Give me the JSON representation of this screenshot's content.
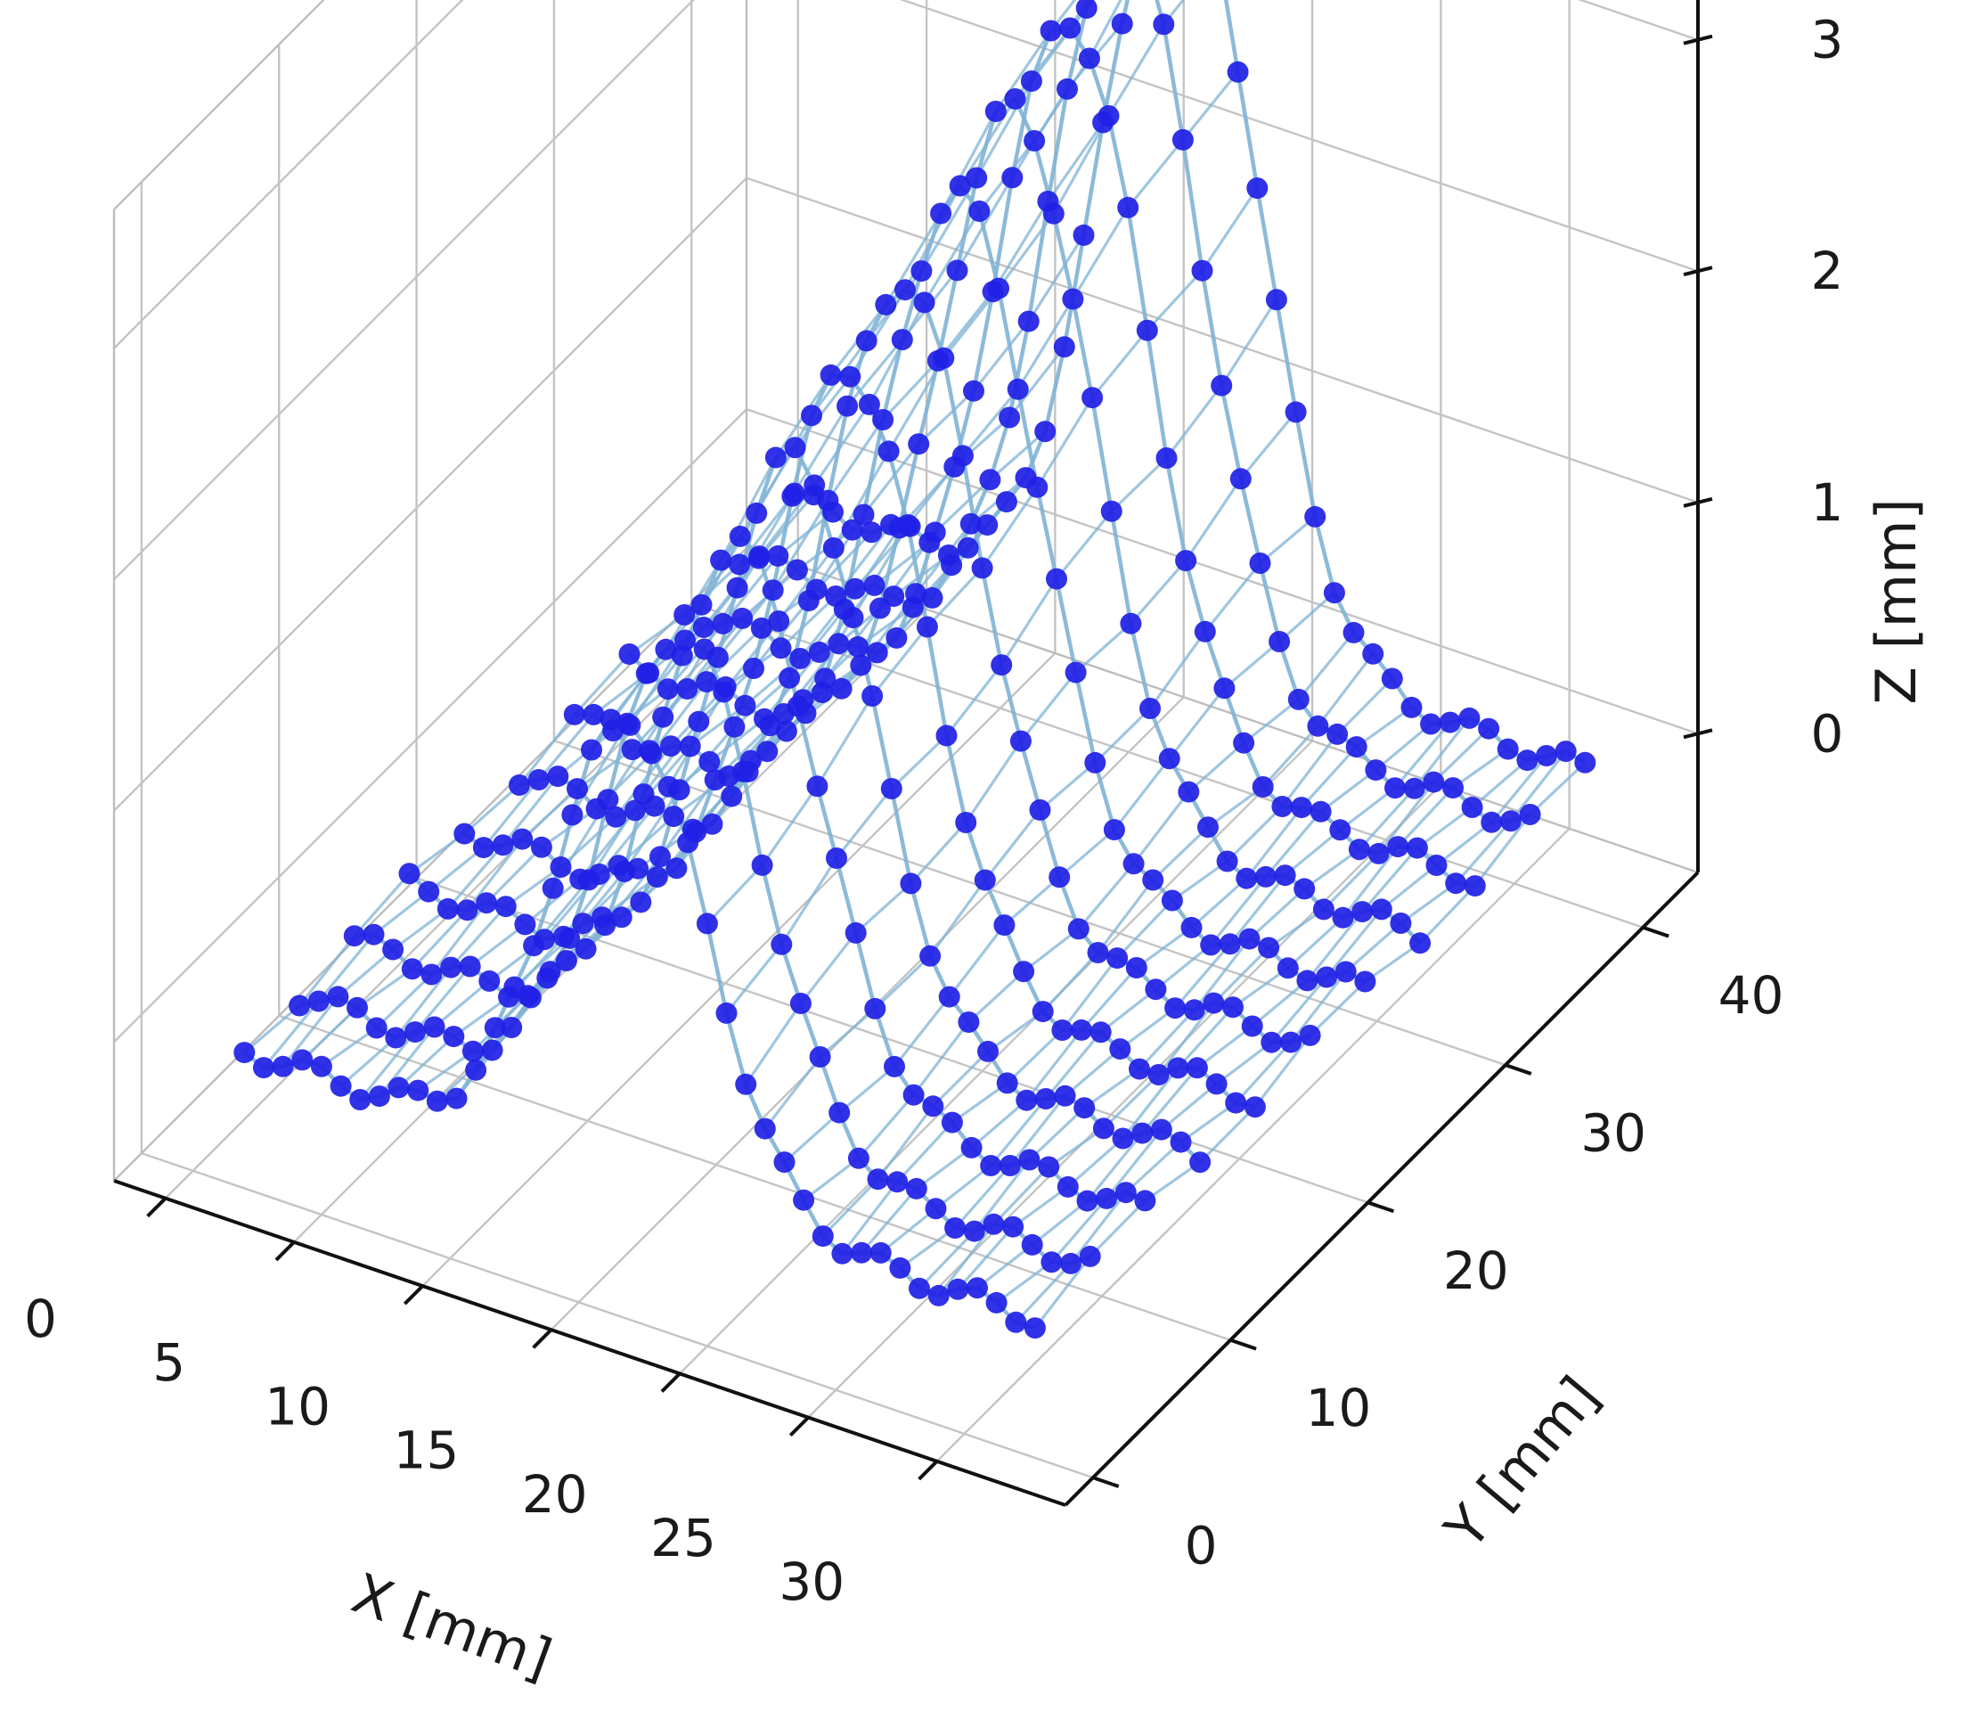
{
  "chart_data": {
    "type": "scatter-3d",
    "xlabel": "X [mm]",
    "ylabel": "Y [mm]",
    "zlabel": "Z [mm]",
    "xlim": [
      -2,
      35
    ],
    "ylim": [
      -2,
      44
    ],
    "zlim": [
      -0.6,
      3.6
    ],
    "xticks": [
      0,
      5,
      10,
      15,
      20,
      25,
      30
    ],
    "yticks": [
      0,
      10,
      20,
      30,
      40
    ],
    "zticks": [
      0,
      1,
      2,
      3
    ],
    "grid": true,
    "surface": {
      "description_type": "ridge along x over a grid of y-rows",
      "x_range": [
        2,
        33
      ],
      "y_rows": [
        0,
        4,
        8,
        12,
        16,
        20,
        24,
        28,
        32,
        36,
        40
      ],
      "peak_x": 17,
      "peak_z_at_y0": 2.0,
      "peak_z_at_y40": 3.4,
      "ridge_width_mm": 4.2,
      "point_color": "#1f1fe6",
      "line_color": "#7fb3d5"
    }
  }
}
